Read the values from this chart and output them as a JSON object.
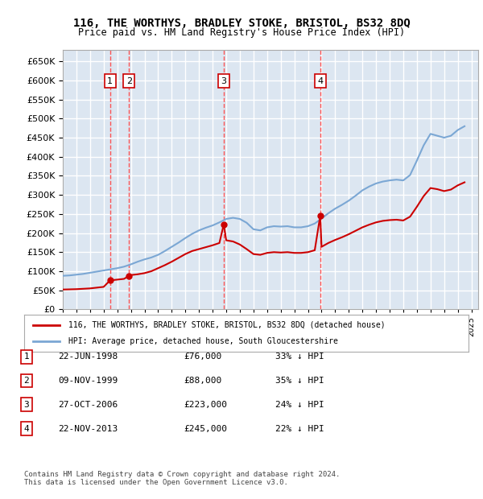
{
  "title": "116, THE WORTHYS, BRADLEY STOKE, BRISTOL, BS32 8DQ",
  "subtitle": "Price paid vs. HM Land Registry's House Price Index (HPI)",
  "ylabel": "",
  "ylim": [
    0,
    680000
  ],
  "yticks": [
    0,
    50000,
    100000,
    150000,
    200000,
    250000,
    300000,
    350000,
    400000,
    450000,
    500000,
    550000,
    600000,
    650000
  ],
  "xlim_start": 1995.0,
  "xlim_end": 2025.5,
  "background_color": "#ffffff",
  "plot_bg_color": "#dce6f1",
  "grid_color": "#ffffff",
  "sale_dates": [
    1998.47,
    1999.86,
    2006.82,
    2013.9
  ],
  "sale_prices": [
    76000,
    88000,
    223000,
    245000
  ],
  "sale_labels": [
    "1",
    "2",
    "3",
    "4"
  ],
  "legend_line1": "116, THE WORTHYS, BRADLEY STOKE, BRISTOL, BS32 8DQ (detached house)",
  "legend_line2": "HPI: Average price, detached house, South Gloucestershire",
  "table_rows": [
    [
      "1",
      "22-JUN-1998",
      "£76,000",
      "33% ↓ HPI"
    ],
    [
      "2",
      "09-NOV-1999",
      "£88,000",
      "35% ↓ HPI"
    ],
    [
      "3",
      "27-OCT-2006",
      "£223,000",
      "24% ↓ HPI"
    ],
    [
      "4",
      "22-NOV-2013",
      "£245,000",
      "22% ↓ HPI"
    ]
  ],
  "footnote": "Contains HM Land Registry data © Crown copyright and database right 2024.\nThis data is licensed under the Open Government Licence v3.0.",
  "hpi_color": "#7ba7d4",
  "price_color": "#cc0000",
  "vline_color": "#ff4444",
  "marker_color": "#cc0000",
  "hpi_x": [
    1995.0,
    1995.5,
    1996.0,
    1996.5,
    1997.0,
    1997.5,
    1998.0,
    1998.5,
    1999.0,
    1999.5,
    2000.0,
    2000.5,
    2001.0,
    2001.5,
    2002.0,
    2002.5,
    2003.0,
    2003.5,
    2004.0,
    2004.5,
    2005.0,
    2005.5,
    2006.0,
    2006.5,
    2007.0,
    2007.5,
    2008.0,
    2008.5,
    2009.0,
    2009.5,
    2010.0,
    2010.5,
    2011.0,
    2011.5,
    2012.0,
    2012.5,
    2013.0,
    2013.5,
    2014.0,
    2014.5,
    2015.0,
    2015.5,
    2016.0,
    2016.5,
    2017.0,
    2017.5,
    2018.0,
    2018.5,
    2019.0,
    2019.5,
    2020.0,
    2020.5,
    2021.0,
    2021.5,
    2022.0,
    2022.5,
    2023.0,
    2023.5,
    2024.0,
    2024.5
  ],
  "hpi_y": [
    88000,
    89000,
    91000,
    93000,
    96000,
    99000,
    102000,
    105000,
    108000,
    112000,
    118000,
    125000,
    131000,
    136000,
    143000,
    153000,
    164000,
    175000,
    187000,
    198000,
    207000,
    214000,
    220000,
    228000,
    237000,
    240000,
    237000,
    227000,
    210000,
    207000,
    215000,
    218000,
    217000,
    218000,
    215000,
    215000,
    218000,
    225000,
    238000,
    252000,
    264000,
    274000,
    285000,
    298000,
    312000,
    322000,
    330000,
    335000,
    338000,
    340000,
    338000,
    352000,
    390000,
    430000,
    460000,
    455000,
    450000,
    455000,
    470000,
    480000
  ],
  "price_x": [
    1995.0,
    1995.5,
    1996.0,
    1996.5,
    1997.0,
    1997.5,
    1998.0,
    1998.47,
    1999.0,
    1999.5,
    1999.86,
    2000.0,
    2000.5,
    2001.0,
    2001.5,
    2002.0,
    2002.5,
    2003.0,
    2003.5,
    2004.0,
    2004.5,
    2005.0,
    2005.5,
    2006.0,
    2006.5,
    2006.82,
    2007.0,
    2007.5,
    2008.0,
    2008.5,
    2009.0,
    2009.5,
    2010.0,
    2010.5,
    2011.0,
    2011.5,
    2012.0,
    2012.5,
    2013.0,
    2013.5,
    2013.9,
    2014.0,
    2014.5,
    2015.0,
    2015.5,
    2016.0,
    2016.5,
    2017.0,
    2017.5,
    2018.0,
    2018.5,
    2019.0,
    2019.5,
    2020.0,
    2020.5,
    2021.0,
    2021.5,
    2022.0,
    2022.5,
    2023.0,
    2023.5,
    2024.0,
    2024.5
  ],
  "price_y": [
    52000,
    52500,
    53000,
    54000,
    55000,
    57000,
    59000,
    76000,
    78000,
    80000,
    88000,
    90000,
    92000,
    95000,
    100000,
    108000,
    116000,
    125000,
    135000,
    145000,
    153000,
    158000,
    163000,
    168000,
    174000,
    223000,
    181000,
    178000,
    170000,
    158000,
    145000,
    143000,
    148000,
    150000,
    149000,
    150000,
    148000,
    148000,
    150000,
    155000,
    245000,
    164000,
    174000,
    182000,
    189000,
    197000,
    206000,
    215000,
    222000,
    228000,
    232000,
    234000,
    235000,
    233000,
    243000,
    269000,
    297000,
    318000,
    315000,
    310000,
    314000,
    325000,
    333000
  ]
}
